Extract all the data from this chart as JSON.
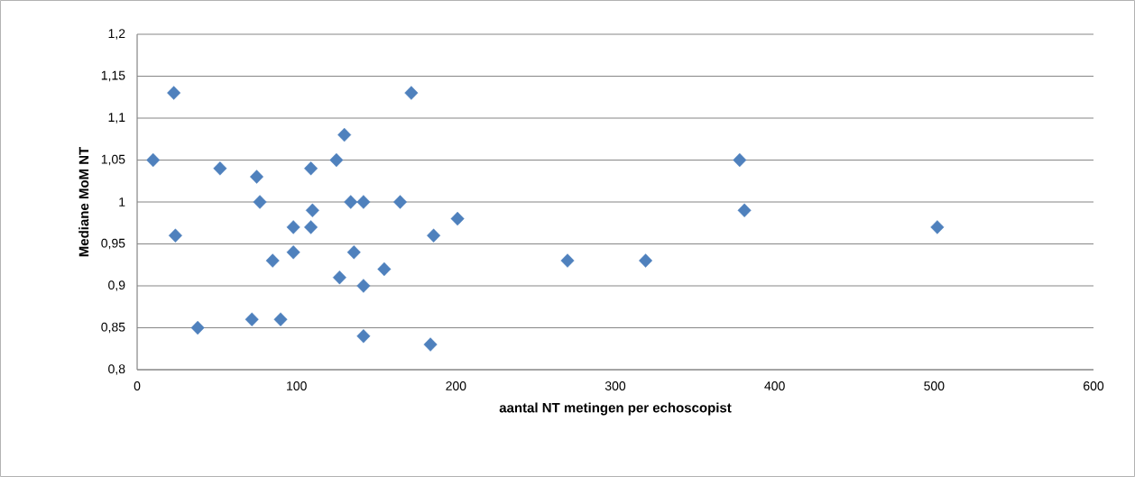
{
  "chart_data": {
    "type": "scatter",
    "xlabel": "aantal NT metingen per echoscopist",
    "ylabel": "Mediane MoM NT",
    "x": [
      10,
      23,
      24,
      38,
      52,
      72,
      75,
      77,
      85,
      90,
      98,
      98,
      109,
      109,
      110,
      125,
      127,
      130,
      134,
      136,
      142,
      142,
      142,
      155,
      165,
      172,
      184,
      186,
      201,
      270,
      319,
      378,
      381,
      502
    ],
    "values": [
      1.05,
      1.13,
      0.96,
      0.85,
      1.04,
      0.86,
      1.03,
      1.0,
      0.93,
      0.86,
      0.97,
      0.94,
      1.04,
      0.97,
      0.99,
      1.05,
      0.91,
      1.08,
      1.0,
      0.94,
      1.0,
      0.9,
      0.84,
      0.92,
      1.0,
      1.13,
      0.83,
      0.96,
      0.98,
      0.93,
      0.93,
      1.05,
      0.99,
      0.97
    ],
    "color": "#4f81bd",
    "marker": "diamond",
    "grid": "y",
    "xlim": [
      0,
      600
    ],
    "xticks": [
      0,
      100,
      200,
      300,
      400,
      500,
      600
    ],
    "ylim": [
      0.8,
      1.2
    ],
    "yticks": [
      {
        "value": 0.8,
        "label": "0,8"
      },
      {
        "value": 0.85,
        "label": "0,85"
      },
      {
        "value": 0.9,
        "label": "0,9"
      },
      {
        "value": 0.95,
        "label": "0,95"
      },
      {
        "value": 1.0,
        "label": "1"
      },
      {
        "value": 1.05,
        "label": "1,05"
      },
      {
        "value": 1.1,
        "label": "1,1"
      },
      {
        "value": 1.15,
        "label": "1,15"
      },
      {
        "value": 1.2,
        "label": "1,2"
      }
    ]
  }
}
